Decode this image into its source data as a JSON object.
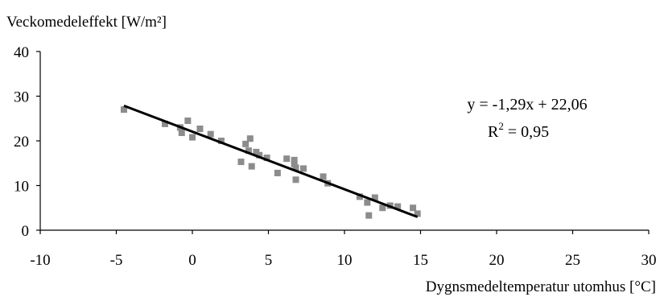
{
  "chart_data": {
    "type": "scatter",
    "title": "",
    "ylabel": "Veckomedeleffekt [W/m²]",
    "xlabel": "Dygnsmedeltemperatur utomhus [°C]",
    "xlim": [
      -10,
      30
    ],
    "ylim": [
      0,
      40
    ],
    "xticks": [
      "-10",
      "-5",
      "0",
      "5",
      "10",
      "15",
      "20",
      "25",
      "30"
    ],
    "yticks": [
      "0",
      "10",
      "20",
      "30",
      "40"
    ],
    "grid": false,
    "legend": "none",
    "marker_color": "#8c8c8c",
    "line_color": "#000000",
    "points": [
      {
        "x": -4.5,
        "y": 27.0
      },
      {
        "x": -1.8,
        "y": 23.8
      },
      {
        "x": -0.8,
        "y": 23.0
      },
      {
        "x": -0.7,
        "y": 21.8
      },
      {
        "x": -0.3,
        "y": 24.5
      },
      {
        "x": 0.0,
        "y": 20.8
      },
      {
        "x": 0.5,
        "y": 22.7
      },
      {
        "x": 1.2,
        "y": 21.5
      },
      {
        "x": 1.9,
        "y": 20.0
      },
      {
        "x": 3.2,
        "y": 15.3
      },
      {
        "x": 3.5,
        "y": 19.3
      },
      {
        "x": 3.7,
        "y": 17.8
      },
      {
        "x": 3.8,
        "y": 20.5
      },
      {
        "x": 3.9,
        "y": 14.3
      },
      {
        "x": 4.2,
        "y": 17.5
      },
      {
        "x": 4.4,
        "y": 16.8
      },
      {
        "x": 4.9,
        "y": 16.2
      },
      {
        "x": 5.6,
        "y": 12.8
      },
      {
        "x": 6.2,
        "y": 16.0
      },
      {
        "x": 6.7,
        "y": 15.7
      },
      {
        "x": 6.7,
        "y": 14.8
      },
      {
        "x": 6.8,
        "y": 14.0
      },
      {
        "x": 6.8,
        "y": 11.3
      },
      {
        "x": 7.3,
        "y": 13.8
      },
      {
        "x": 8.6,
        "y": 12.0
      },
      {
        "x": 8.9,
        "y": 10.5
      },
      {
        "x": 11.0,
        "y": 7.5
      },
      {
        "x": 11.5,
        "y": 6.2
      },
      {
        "x": 11.6,
        "y": 3.3
      },
      {
        "x": 12.0,
        "y": 7.3
      },
      {
        "x": 12.5,
        "y": 5.0
      },
      {
        "x": 13.0,
        "y": 5.5
      },
      {
        "x": 13.5,
        "y": 5.3
      },
      {
        "x": 14.5,
        "y": 5.0
      },
      {
        "x": 14.8,
        "y": 3.7
      }
    ],
    "trendline": {
      "slope": -1.29,
      "intercept": 22.06,
      "x_start": -4.5,
      "x_end": 14.8,
      "equation": "y = -1,29x + 22,06",
      "r2_label": "R",
      "r2_exp": "2",
      "r2_value": " = 0,95"
    }
  }
}
